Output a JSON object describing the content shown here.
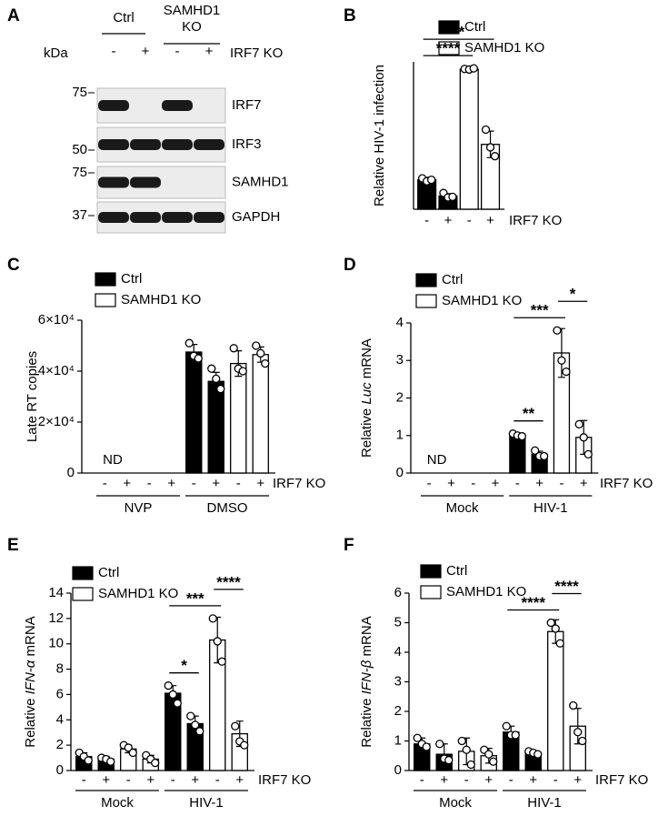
{
  "panel_labels": [
    "A",
    "B",
    "C",
    "D",
    "E",
    "F"
  ],
  "blot": {
    "groups": [
      "Ctrl",
      "SAMHD1 KO"
    ],
    "kda_label": "kDa",
    "lanes": [
      "-",
      "+",
      "-",
      "+"
    ],
    "lane_axis_label": "IRF7 KO",
    "rows": [
      {
        "name": "IRF7",
        "marker": "75",
        "bands": [
          true,
          false,
          true,
          false
        ]
      },
      {
        "name": "IRF3",
        "marker": "50",
        "bands": [
          true,
          true,
          true,
          true
        ]
      },
      {
        "name": "SAMHD1",
        "marker": "75",
        "bands": [
          true,
          true,
          false,
          false
        ]
      },
      {
        "name": "GAPDH",
        "marker": "37",
        "bands": [
          true,
          true,
          true,
          true
        ]
      }
    ]
  },
  "chart_data": [
    {
      "type": "bar",
      "ylabel": "Relative HIV-1 infection",
      "xlabel": "IRF7 KO",
      "categories": [
        "-",
        "+",
        "-",
        "+"
      ],
      "ylim": [
        0,
        5
      ],
      "series": [
        {
          "name": "Ctrl",
          "color": "#000000",
          "values": [
            1.0,
            0.45,
            null,
            null
          ],
          "errors": [
            0.08,
            0.08,
            null,
            null
          ],
          "points": [
            [
              1.05,
              0.95,
              1.0
            ],
            [
              0.55,
              0.4,
              0.42
            ],
            null,
            null
          ]
        },
        {
          "name": "SAMHD1 KO",
          "color": "#ffffff",
          "values": [
            null,
            null,
            4.75,
            2.2
          ],
          "errors": [
            null,
            null,
            0.04,
            0.45
          ],
          "points": [
            null,
            null,
            [
              4.76,
              4.74,
              4.78
            ],
            [
              2.7,
              2.1,
              1.8
            ]
          ]
        }
      ],
      "annotations": [
        {
          "text": "****",
          "from": 0,
          "to": 2
        },
        {
          "text": "**",
          "from": 0,
          "to": 3
        }
      ]
    },
    {
      "type": "bar",
      "ylabel": "Late RT copies",
      "xlabel": "IRF7 KO",
      "categories": [
        "-",
        "+",
        "-",
        "+",
        "-",
        "+",
        "-",
        "+"
      ],
      "groups": [
        {
          "label": "NVP",
          "note": "ND"
        },
        {
          "label": "DMSO"
        }
      ],
      "ylim": [
        0,
        60000
      ],
      "yticks": [
        0,
        {
          "value": 20000,
          "label": "2×10⁴"
        },
        {
          "value": 40000,
          "label": "4×10⁴"
        },
        {
          "value": 60000,
          "label": "6×10⁴"
        }
      ],
      "series": [
        {
          "name": "Ctrl",
          "color": "#000000",
          "values": [
            null,
            null,
            null,
            null,
            47500,
            36000,
            null,
            null
          ],
          "errors": [
            null,
            null,
            null,
            null,
            3000,
            3500,
            null,
            null
          ],
          "points": [
            null,
            null,
            null,
            null,
            [
              51000,
              46000,
              45000
            ],
            [
              41000,
              37000,
              33000
            ],
            null,
            null
          ]
        },
        {
          "name": "SAMHD1 KO",
          "color": "#ffffff",
          "values": [
            null,
            null,
            null,
            null,
            null,
            null,
            43000,
            46500
          ],
          "errors": [
            null,
            null,
            null,
            null,
            null,
            null,
            5000,
            3000
          ],
          "points": [
            null,
            null,
            null,
            null,
            null,
            null,
            [
              49000,
              41000,
              40000
            ],
            [
              50000,
              47000,
              43000
            ]
          ]
        }
      ],
      "annotations": []
    },
    {
      "type": "bar",
      "ylabel": "Relative Luc mRNA",
      "ylabel_italic": "Luc",
      "xlabel": "IRF7 KO",
      "categories": [
        "-",
        "+",
        "-",
        "+",
        "-",
        "+",
        "-",
        "+"
      ],
      "groups": [
        {
          "label": "Mock",
          "note": "ND"
        },
        {
          "label": "HIV-1"
        }
      ],
      "ylim": [
        0,
        4
      ],
      "yticks": [
        0,
        1,
        2,
        3,
        4
      ],
      "series": [
        {
          "name": "Ctrl",
          "color": "#000000",
          "values": [
            null,
            null,
            null,
            null,
            1.0,
            0.5,
            null,
            null
          ],
          "errors": [
            null,
            null,
            null,
            null,
            0.05,
            0.08,
            null,
            null
          ],
          "points": [
            null,
            null,
            null,
            null,
            [
              1.05,
              1.0,
              0.98
            ],
            [
              0.6,
              0.45,
              0.45
            ],
            null,
            null
          ]
        },
        {
          "name": "SAMHD1 KO",
          "color": "#ffffff",
          "values": [
            null,
            null,
            null,
            null,
            null,
            null,
            3.2,
            0.95
          ],
          "errors": [
            null,
            null,
            null,
            null,
            null,
            null,
            0.65,
            0.45
          ],
          "points": [
            null,
            null,
            null,
            null,
            null,
            null,
            [
              3.8,
              3.0,
              2.7
            ],
            [
              1.3,
              0.95,
              0.5
            ]
          ]
        }
      ],
      "annotations": [
        {
          "text": "**",
          "from": 4,
          "to": 5
        },
        {
          "text": "***",
          "from": 4,
          "to": 6
        },
        {
          "text": "*",
          "from": 6,
          "to": 7
        }
      ]
    },
    {
      "type": "bar",
      "ylabel": "Relative IFN-α mRNA",
      "ylabel_italic": "IFN-α",
      "xlabel": "IRF7 KO",
      "categories": [
        "-",
        "+",
        "-",
        "+",
        "-",
        "+",
        "-",
        "+"
      ],
      "groups": [
        {
          "label": "Mock"
        },
        {
          "label": "HIV-1"
        }
      ],
      "ylim": [
        0,
        14
      ],
      "yticks": [
        0,
        2,
        4,
        6,
        8,
        10,
        12,
        14
      ],
      "series": [
        {
          "name": "Ctrl",
          "color": "#000000",
          "values": [
            1.1,
            0.9,
            null,
            null,
            6.1,
            3.7,
            null,
            null
          ],
          "errors": [
            0.3,
            0.2,
            null,
            null,
            0.6,
            0.6,
            null,
            null
          ],
          "points": [
            [
              1.4,
              1.1,
              0.8
            ],
            [
              1.0,
              0.9,
              0.7
            ],
            null,
            null,
            [
              6.7,
              6.0,
              5.3
            ],
            [
              4.3,
              3.6,
              3.1
            ],
            null,
            null
          ]
        },
        {
          "name": "SAMHD1 KO",
          "color": "#ffffff",
          "values": [
            null,
            null,
            1.7,
            0.9,
            null,
            null,
            10.3,
            2.9
          ],
          "errors": [
            null,
            null,
            0.3,
            0.3,
            null,
            null,
            1.8,
            1.0
          ],
          "points": [
            null,
            null,
            [
              2.0,
              1.8,
              1.4
            ],
            [
              1.2,
              0.9,
              0.6
            ],
            null,
            null,
            [
              12.0,
              10.2,
              8.6
            ],
            [
              3.5,
              2.3,
              2.0
            ]
          ]
        }
      ],
      "annotations": [
        {
          "text": "*",
          "from": 4,
          "to": 5
        },
        {
          "text": "***",
          "from": 4,
          "to": 6
        },
        {
          "text": "****",
          "from": 6,
          "to": 7
        }
      ]
    },
    {
      "type": "bar",
      "ylabel": "Relative IFN-β mRNA",
      "ylabel_italic": "IFN-β",
      "xlabel": "IRF7 KO",
      "categories": [
        "-",
        "+",
        "-",
        "+",
        "-",
        "+",
        "-",
        "+"
      ],
      "groups": [
        {
          "label": "Mock"
        },
        {
          "label": "HIV-1"
        }
      ],
      "ylim": [
        0,
        6
      ],
      "yticks": [
        0,
        1,
        2,
        3,
        4,
        5,
        6
      ],
      "series": [
        {
          "name": "Ctrl",
          "color": "#000000",
          "values": [
            0.9,
            0.55,
            null,
            null,
            1.3,
            0.6,
            null,
            null
          ],
          "errors": [
            0.2,
            0.35,
            null,
            null,
            0.2,
            0.05,
            null,
            null
          ],
          "points": [
            [
              1.1,
              0.9,
              0.8
            ],
            [
              0.9,
              0.4,
              0.35
            ],
            null,
            null,
            [
              1.5,
              1.2,
              1.2
            ],
            [
              0.65,
              0.6,
              0.55
            ],
            null,
            null
          ]
        },
        {
          "name": "SAMHD1 KO",
          "color": "#ffffff",
          "values": [
            null,
            null,
            0.65,
            0.5,
            null,
            null,
            4.7,
            1.5
          ],
          "errors": [
            null,
            null,
            0.45,
            0.25,
            null,
            null,
            0.4,
            0.6
          ],
          "points": [
            null,
            null,
            [
              1.0,
              0.7,
              0.2
            ],
            [
              0.7,
              0.55,
              0.3
            ],
            null,
            null,
            [
              5.0,
              4.8,
              4.3
            ],
            [
              2.2,
              1.3,
              1.0
            ]
          ]
        }
      ],
      "annotations": [
        {
          "text": "****",
          "from": 4,
          "to": 6
        },
        {
          "text": "****",
          "from": 6,
          "to": 7
        }
      ]
    }
  ]
}
